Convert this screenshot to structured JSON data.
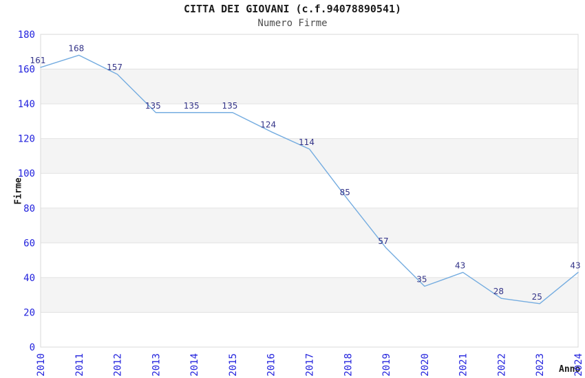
{
  "chart_data": {
    "type": "line",
    "title": "CITTA DEI GIOVANI (c.f.94078890541)",
    "subtitle": "Numero Firme",
    "xlabel": "Anno",
    "ylabel": "Firme",
    "x": [
      "2010",
      "2011",
      "2012",
      "2013",
      "2014",
      "2015",
      "2016",
      "2017",
      "2018",
      "2019",
      "2020",
      "2021",
      "2022",
      "2023",
      "2024"
    ],
    "series": [
      {
        "name": "Numero Firme",
        "values": [
          161,
          168,
          157,
          135,
          135,
          135,
          124,
          114,
          85,
          57,
          35,
          43,
          28,
          25,
          43
        ]
      }
    ],
    "point_labels_visible": true,
    "ylim": [
      0,
      180
    ],
    "yticks": [
      0,
      20,
      40,
      60,
      80,
      100,
      120,
      140,
      160,
      180
    ],
    "grid": "horizontal",
    "alternating_bands": true,
    "legend_position": "none",
    "colors": {
      "line": "#74ACE0",
      "tick_label": "#2222DD",
      "point_label": "#333388",
      "band": "#F4F4F4",
      "gridline": "#E2E2E2",
      "plot_border": "#D8D8D8",
      "background": "#FFFFFF"
    }
  }
}
